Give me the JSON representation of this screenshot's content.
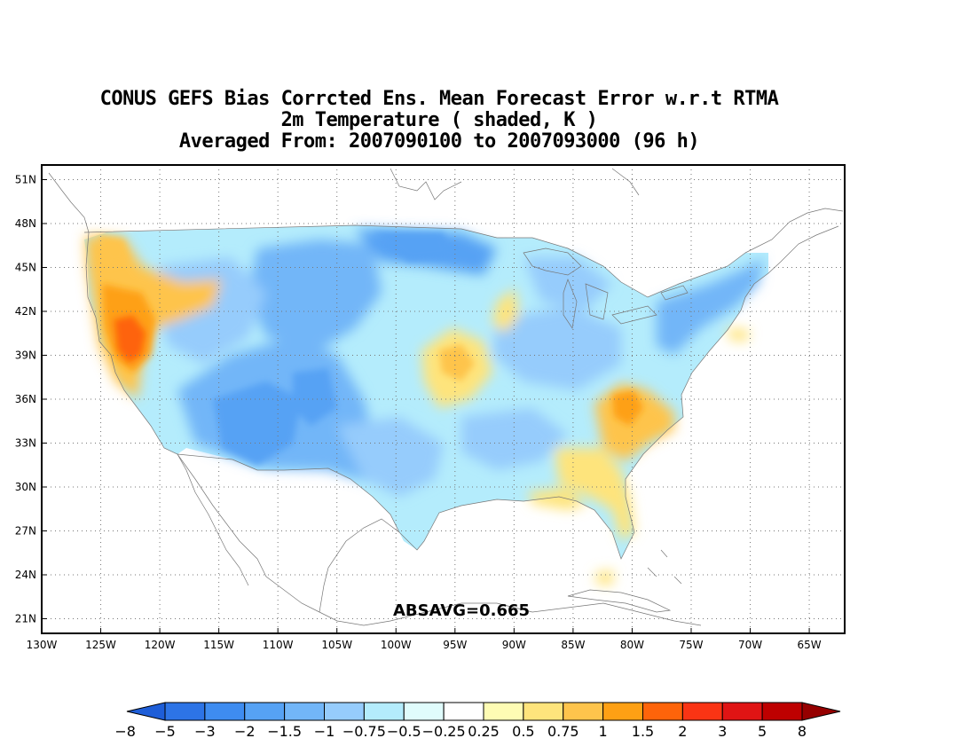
{
  "title": {
    "line1": "CONUS GEFS Bias Corrcted Ens. Mean Forecast Error w.r.t RTMA",
    "line2": "2m Temperature ( shaded, K )",
    "line3": "Averaged From: 2007090100 to 2007093000 (96 h)"
  },
  "map": {
    "lon_labels": [
      "130W",
      "125W",
      "120W",
      "115W",
      "110W",
      "105W",
      "100W",
      "95W",
      "90W",
      "85W",
      "80W",
      "75W",
      "70W",
      "65W"
    ],
    "lon_values": [
      -130,
      -125,
      -120,
      -115,
      -110,
      -105,
      -100,
      -95,
      -90,
      -85,
      -80,
      -75,
      -70,
      -65
    ],
    "lat_labels": [
      "51N",
      "48N",
      "45N",
      "42N",
      "39N",
      "36N",
      "33N",
      "30N",
      "27N",
      "24N",
      "21N"
    ],
    "lat_values": [
      51,
      48,
      45,
      42,
      39,
      36,
      33,
      30,
      27,
      24,
      21
    ],
    "lon_range": [
      -130,
      -62
    ],
    "lat_range": [
      20,
      52
    ],
    "grid": "dotted",
    "statistic": "ABSAVG=0.665"
  },
  "colorbar": {
    "labels": [
      "−8",
      "−5",
      "−3",
      "−2",
      "−1.5",
      "−1",
      "−0.75",
      "−0.5",
      "−0.25",
      "0.25",
      "0.5",
      "0.75",
      "1",
      "1.5",
      "2",
      "3",
      "5",
      "8"
    ],
    "colors": [
      "#1e5ed8",
      "#2d74e6",
      "#3e8cf0",
      "#56a2f4",
      "#72b6f8",
      "#96ccfc",
      "#b4ecfc",
      "#e0fcfc",
      "#ffffff",
      "#fefcb4",
      "#fee47c",
      "#fec44c",
      "#fea014",
      "#fe640a",
      "#fa3414",
      "#e01414",
      "#be0000",
      "#960000"
    ]
  },
  "colors": {
    "cold_strong": "#3e8cf0",
    "cold_mid": "#72b6f8",
    "cold_light": "#b4ecfc",
    "warm_light": "#fee47c",
    "warm_mid": "#fec44c",
    "warm_strong": "#fea014",
    "hot": "#fe640a"
  }
}
